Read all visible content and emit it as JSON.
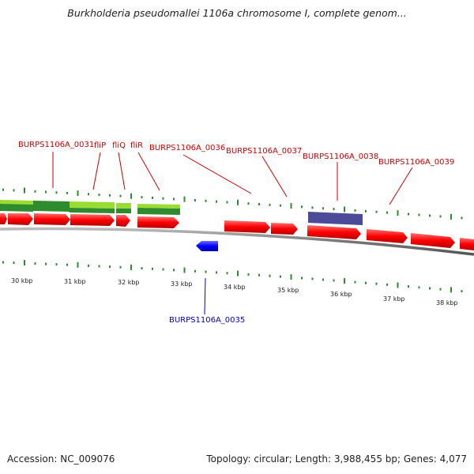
{
  "header": {
    "title": "Burkholderia pseudomallei 1106a chromosome I, complete genom..."
  },
  "footer": {
    "accession": "Accession: NC_009076",
    "summary": "Topology: circular; Length: 3,988,455 bp; Genes: 4,077"
  },
  "scale": {
    "labels": [
      "30 kbp",
      "31 kbp",
      "32 kbp",
      "33 kbp",
      "34 kbp",
      "35 kbp",
      "36 kbp",
      "37 kbp",
      "38 kbp"
    ]
  },
  "forward_labels": [
    "BURPS1106A_0031",
    "fliP",
    "fliQ",
    "fliR",
    "BURPS1106A_0036",
    "BURPS1106A_0037",
    "BURPS1106A_0038",
    "BURPS1106A_0039"
  ],
  "reverse_labels": [
    "BURPS1106A_0035"
  ],
  "colors": {
    "cds": "#ff0000",
    "cds_reverse": "#0000ff",
    "gene_green_light": "#99dd33",
    "gene_green_dark": "#2e8b2e",
    "gene_purple": "#4b4b9a",
    "label_forward": "#cc0000",
    "label_reverse": "#0000cc",
    "backbone": "#808080",
    "ticks": "#2e8b2e"
  }
}
